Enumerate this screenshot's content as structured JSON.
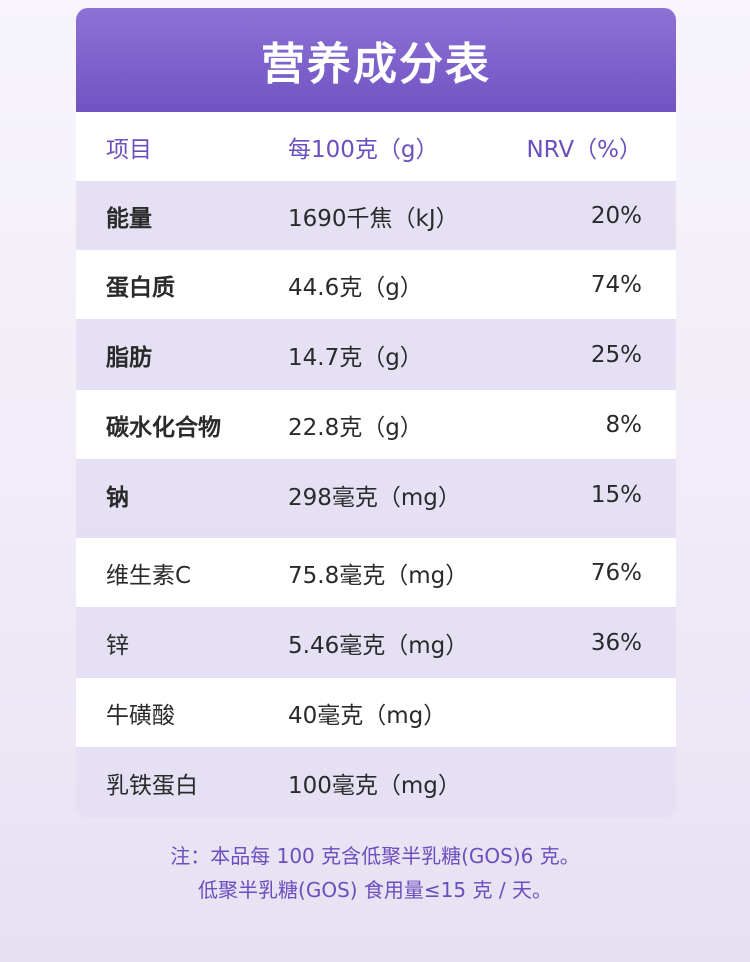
{
  "title": "营养成分表",
  "header": {
    "item": "项目",
    "per100": "每100克（g）",
    "nrv": "NRV（%）"
  },
  "rows": [
    {
      "name": "能量",
      "amount": "1690千焦（kJ）",
      "nrv": "20%"
    },
    {
      "name": "蛋白质",
      "amount": "44.6克（g）",
      "nrv": "74%"
    },
    {
      "name": "脂肪",
      "amount": "14.7克（g）",
      "nrv": "25%"
    },
    {
      "name": "碳水化合物",
      "amount": "22.8克（g）",
      "nrv": "8%"
    },
    {
      "name": "钠",
      "amount": "298毫克（mg）",
      "nrv": "15%"
    },
    {
      "name": "维生素C",
      "amount": "75.8毫克（mg）",
      "nrv": "76%"
    },
    {
      "name": "锌",
      "amount": "5.46毫克（mg）",
      "nrv": "36%"
    },
    {
      "name": "牛磺酸",
      "amount": "40毫克（mg）",
      "nrv": ""
    },
    {
      "name": "乳铁蛋白",
      "amount": "100毫克（mg）",
      "nrv": ""
    }
  ],
  "notes": [
    "注：本品每 100 克含低聚半乳糖(GOS)6 克。",
    "低聚半乳糖(GOS) 食用量≤15 克 / 天。"
  ]
}
